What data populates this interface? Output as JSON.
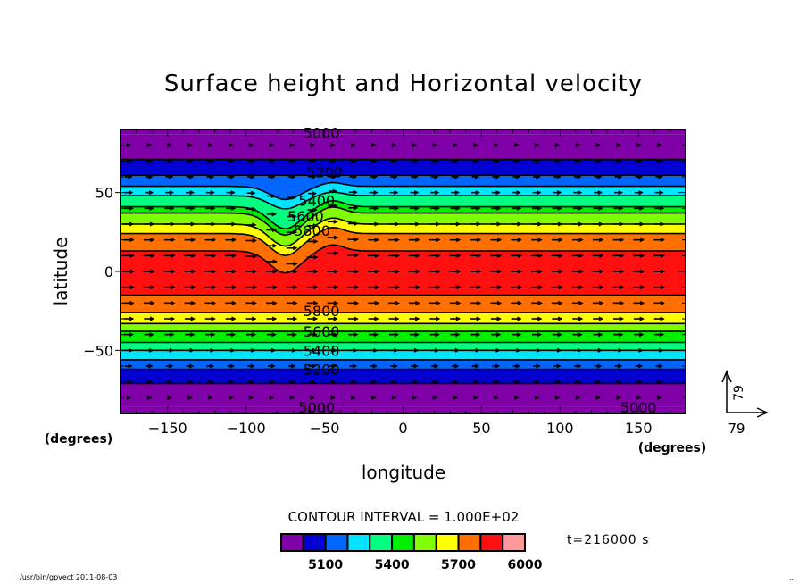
{
  "chart_data": {
    "type": "heatmap",
    "subtype": "filled-contour with vector overlay",
    "title": "Surface height and Horizontal velocity",
    "xlabel": "longitude",
    "ylabel": "latitude",
    "x_units": "(degrees)",
    "y_units": "(degrees)",
    "xlim": [
      -180,
      180
    ],
    "ylim": [
      -90,
      90
    ],
    "x_ticks": [
      -150,
      -100,
      -50,
      0,
      50,
      100,
      150
    ],
    "x_tick_labels": [
      "−150",
      "−100",
      "−50",
      "0",
      "50",
      "100",
      "150"
    ],
    "y_ticks": [
      50,
      0,
      -50
    ],
    "y_tick_labels": [
      "50",
      "0",
      "−50"
    ],
    "contour_interval_text": "CONTOUR INTERVAL = 1.000E+02",
    "contour_interval": 100,
    "contour_labels": [
      {
        "text": "5000",
        "lon": -52,
        "lat": 88
      },
      {
        "text": "5200",
        "lon": -50,
        "lat": 63
      },
      {
        "text": "5400",
        "lon": -55,
        "lat": 45
      },
      {
        "text": "5600",
        "lon": -62,
        "lat": 35
      },
      {
        "text": "5800",
        "lon": -58,
        "lat": 26
      },
      {
        "text": "5800",
        "lon": -52,
        "lat": -25
      },
      {
        "text": "5600",
        "lon": -52,
        "lat": -38
      },
      {
        "text": "5400",
        "lon": -52,
        "lat": -50
      },
      {
        "text": "5200",
        "lon": -52,
        "lat": -62
      },
      {
        "text": "5000",
        "lon": -55,
        "lat": -86
      },
      {
        "text": "5000",
        "lon": 150,
        "lat": -86
      }
    ],
    "bands": {
      "description": "zonal bands of surface height (m), lower bound of each band, listed from north pole to south pole",
      "north_to_south_lower_bounds": [
        5000,
        5000,
        5100,
        5200,
        5300,
        5400,
        5500,
        5600,
        5700,
        5800,
        5900,
        5800,
        5700,
        5600,
        5500,
        5400,
        5300,
        5200,
        5100,
        5000,
        5000
      ],
      "boundary_latitudes_undisturbed": [
        87,
        71,
        61,
        54,
        48,
        41,
        37,
        30,
        24,
        13,
        -15,
        -26,
        -33,
        -38,
        -45,
        -50,
        -56,
        -62,
        -71,
        -86
      ],
      "disturbance": {
        "center_lon": -75,
        "note": "northern contours dip southward near 80W and rise slightly near 45W"
      }
    },
    "vectors": {
      "description": "horizontal velocity arrows, mostly zonal (eastward), small near poles",
      "reference_vector_label_x": "79",
      "reference_vector_label_y": "79"
    },
    "colorbar": {
      "colors": [
        "#7f00a6",
        "#0000d0",
        "#0066ff",
        "#00e5ff",
        "#00ff80",
        "#00ee00",
        "#80ff00",
        "#ffff00",
        "#ff7000",
        "#ff1010",
        "#ff9999"
      ],
      "levels": [
        5000,
        5100,
        5200,
        5300,
        5400,
        5500,
        5600,
        5700,
        5800,
        5900,
        6000
      ],
      "tick_labels": [
        "5100",
        "5400",
        "5700",
        "6000"
      ],
      "tick_values": [
        5100,
        5400,
        5700,
        6000
      ]
    },
    "time_label": "t=216000 s"
  },
  "footer": {
    "left": "/usr/bin/gpvect  2011-08-03",
    "right": "..."
  }
}
